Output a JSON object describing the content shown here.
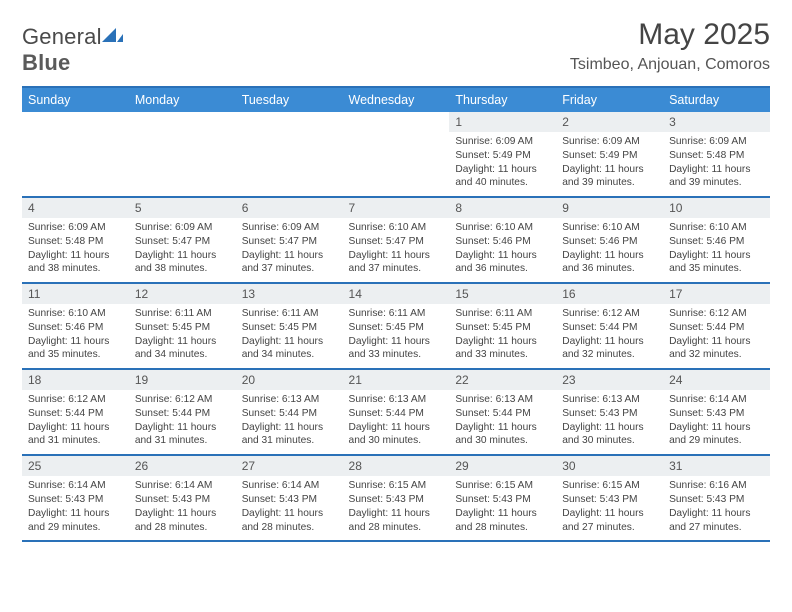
{
  "logo": {
    "word1": "General",
    "word2": "Blue"
  },
  "title": "May 2025",
  "location": "Tsimbeo, Anjouan, Comoros",
  "dayHeaders": [
    "Sunday",
    "Monday",
    "Tuesday",
    "Wednesday",
    "Thursday",
    "Friday",
    "Saturday"
  ],
  "colors": {
    "headerBg": "#3b8bd4",
    "borderBlue": "#2a71b8",
    "dayBg": "#eceff1",
    "logoBlue": "#2a71b8"
  },
  "weeks": [
    [
      null,
      null,
      null,
      null,
      {
        "n": "1",
        "sunrise": "6:09 AM",
        "sunset": "5:49 PM",
        "dlH": "11",
        "dlM": "40"
      },
      {
        "n": "2",
        "sunrise": "6:09 AM",
        "sunset": "5:49 PM",
        "dlH": "11",
        "dlM": "39"
      },
      {
        "n": "3",
        "sunrise": "6:09 AM",
        "sunset": "5:48 PM",
        "dlH": "11",
        "dlM": "39"
      }
    ],
    [
      {
        "n": "4",
        "sunrise": "6:09 AM",
        "sunset": "5:48 PM",
        "dlH": "11",
        "dlM": "38"
      },
      {
        "n": "5",
        "sunrise": "6:09 AM",
        "sunset": "5:47 PM",
        "dlH": "11",
        "dlM": "38"
      },
      {
        "n": "6",
        "sunrise": "6:09 AM",
        "sunset": "5:47 PM",
        "dlH": "11",
        "dlM": "37"
      },
      {
        "n": "7",
        "sunrise": "6:10 AM",
        "sunset": "5:47 PM",
        "dlH": "11",
        "dlM": "37"
      },
      {
        "n": "8",
        "sunrise": "6:10 AM",
        "sunset": "5:46 PM",
        "dlH": "11",
        "dlM": "36"
      },
      {
        "n": "9",
        "sunrise": "6:10 AM",
        "sunset": "5:46 PM",
        "dlH": "11",
        "dlM": "36"
      },
      {
        "n": "10",
        "sunrise": "6:10 AM",
        "sunset": "5:46 PM",
        "dlH": "11",
        "dlM": "35"
      }
    ],
    [
      {
        "n": "11",
        "sunrise": "6:10 AM",
        "sunset": "5:46 PM",
        "dlH": "11",
        "dlM": "35"
      },
      {
        "n": "12",
        "sunrise": "6:11 AM",
        "sunset": "5:45 PM",
        "dlH": "11",
        "dlM": "34"
      },
      {
        "n": "13",
        "sunrise": "6:11 AM",
        "sunset": "5:45 PM",
        "dlH": "11",
        "dlM": "34"
      },
      {
        "n": "14",
        "sunrise": "6:11 AM",
        "sunset": "5:45 PM",
        "dlH": "11",
        "dlM": "33"
      },
      {
        "n": "15",
        "sunrise": "6:11 AM",
        "sunset": "5:45 PM",
        "dlH": "11",
        "dlM": "33"
      },
      {
        "n": "16",
        "sunrise": "6:12 AM",
        "sunset": "5:44 PM",
        "dlH": "11",
        "dlM": "32"
      },
      {
        "n": "17",
        "sunrise": "6:12 AM",
        "sunset": "5:44 PM",
        "dlH": "11",
        "dlM": "32"
      }
    ],
    [
      {
        "n": "18",
        "sunrise": "6:12 AM",
        "sunset": "5:44 PM",
        "dlH": "11",
        "dlM": "31"
      },
      {
        "n": "19",
        "sunrise": "6:12 AM",
        "sunset": "5:44 PM",
        "dlH": "11",
        "dlM": "31"
      },
      {
        "n": "20",
        "sunrise": "6:13 AM",
        "sunset": "5:44 PM",
        "dlH": "11",
        "dlM": "31"
      },
      {
        "n": "21",
        "sunrise": "6:13 AM",
        "sunset": "5:44 PM",
        "dlH": "11",
        "dlM": "30"
      },
      {
        "n": "22",
        "sunrise": "6:13 AM",
        "sunset": "5:44 PM",
        "dlH": "11",
        "dlM": "30"
      },
      {
        "n": "23",
        "sunrise": "6:13 AM",
        "sunset": "5:43 PM",
        "dlH": "11",
        "dlM": "30"
      },
      {
        "n": "24",
        "sunrise": "6:14 AM",
        "sunset": "5:43 PM",
        "dlH": "11",
        "dlM": "29"
      }
    ],
    [
      {
        "n": "25",
        "sunrise": "6:14 AM",
        "sunset": "5:43 PM",
        "dlH": "11",
        "dlM": "29"
      },
      {
        "n": "26",
        "sunrise": "6:14 AM",
        "sunset": "5:43 PM",
        "dlH": "11",
        "dlM": "28"
      },
      {
        "n": "27",
        "sunrise": "6:14 AM",
        "sunset": "5:43 PM",
        "dlH": "11",
        "dlM": "28"
      },
      {
        "n": "28",
        "sunrise": "6:15 AM",
        "sunset": "5:43 PM",
        "dlH": "11",
        "dlM": "28"
      },
      {
        "n": "29",
        "sunrise": "6:15 AM",
        "sunset": "5:43 PM",
        "dlH": "11",
        "dlM": "28"
      },
      {
        "n": "30",
        "sunrise": "6:15 AM",
        "sunset": "5:43 PM",
        "dlH": "11",
        "dlM": "27"
      },
      {
        "n": "31",
        "sunrise": "6:16 AM",
        "sunset": "5:43 PM",
        "dlH": "11",
        "dlM": "27"
      }
    ]
  ]
}
